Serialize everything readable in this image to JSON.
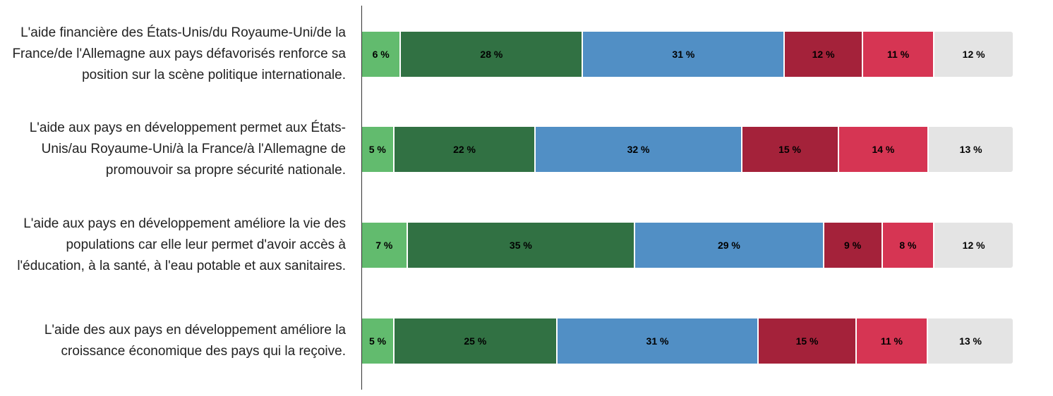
{
  "chart_data": {
    "type": "bar",
    "orientation": "horizontal",
    "stacked": true,
    "categories": [
      "L'aide financière des États-Unis/du Royaume-Uni/de la France/de l'Allemagne aux pays défavorisés renforce sa position sur la scène politique internationale.",
      "L'aide aux pays en développement permet aux États-Unis/au Royaume-Uni/à la France/à l'Allemagne de promouvoir sa propre sécurité nationale.",
      "L'aide aux pays en développement améliore la vie des populations car elle leur permet d'avoir accès à l'éducation, à la santé, à l'eau potable et aux sanitaires.",
      "L'aide des aux pays en développement améliore la croissance économique des pays qui la reçoive."
    ],
    "series_colors": [
      "#62bb6e",
      "#317143",
      "#518fc5",
      "#a4223a",
      "#d63553",
      "#e4e4e4"
    ],
    "values": [
      [
        6,
        28,
        31,
        12,
        11,
        12
      ],
      [
        5,
        22,
        32,
        15,
        14,
        13
      ],
      [
        7,
        35,
        29,
        9,
        8,
        12
      ],
      [
        5,
        25,
        31,
        15,
        11,
        13
      ]
    ],
    "labels": [
      [
        "6 %",
        "28 %",
        "31 %",
        "12 %",
        "11 %",
        "12 %"
      ],
      [
        "5 %",
        "22 %",
        "32 %",
        "15 %",
        "14 %",
        "13 %"
      ],
      [
        "7 %",
        "35 %",
        "29 %",
        "9 %",
        "8 %",
        "12 %"
      ],
      [
        "5 %",
        "25 %",
        "31 %",
        "15 %",
        "11 %",
        "13 %"
      ]
    ],
    "xlim": [
      0,
      100
    ]
  }
}
